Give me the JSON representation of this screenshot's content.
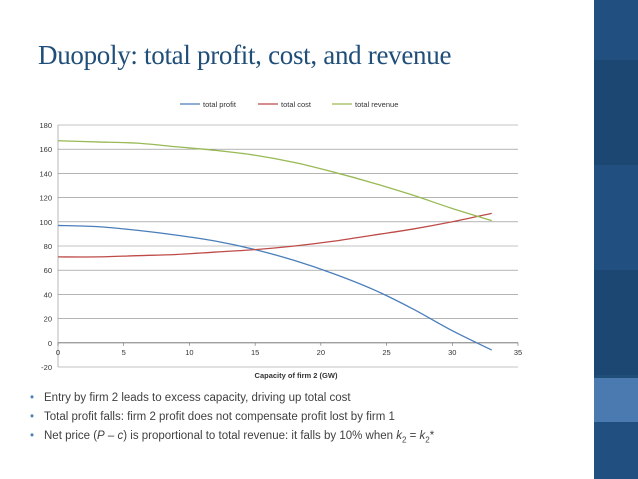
{
  "slide": {
    "title": "Duopoly: total profit, cost, and revenue"
  },
  "bullets": [
    {
      "text": "Entry by firm 2 leads to excess capacity, driving up total cost"
    },
    {
      "text": "Total profit falls: firm 2 profit does not compensate profit lost by firm 1"
    },
    {
      "prefix": "Net price (",
      "p": "P",
      "dash": " – ",
      "c": "c",
      "middle": ") is proportional to total revenue: it falls by 10% when ",
      "k1": "k",
      "sub1": "2",
      "eq": " = ",
      "k2": "k",
      "sub2": "2",
      "star": "*"
    }
  ],
  "colors": {
    "profit": "#4a7ebb",
    "cost": "#be4b48",
    "revenue": "#98b954",
    "grid": "#888888",
    "title": "#1f4e79",
    "bullet": "#4f81bd"
  },
  "chart_data": {
    "type": "line",
    "xlabel": "Capacity of firm 2 (GW)",
    "ylabel": "",
    "xlim": [
      0,
      35
    ],
    "ylim": [
      -20,
      180
    ],
    "x_ticks": [
      0,
      5,
      10,
      15,
      20,
      25,
      30,
      35
    ],
    "y_ticks": [
      -20,
      0,
      20,
      40,
      60,
      80,
      100,
      120,
      140,
      160,
      180
    ],
    "grid": "horizontal",
    "legend_position": "top",
    "x": [
      0,
      3,
      6,
      9,
      12,
      15,
      18,
      21,
      24,
      27,
      30,
      33
    ],
    "series": [
      {
        "name": "total profit",
        "color": "#4a7ebb",
        "values": [
          97,
          96,
          93,
          89,
          84,
          77,
          68,
          57,
          44,
          28,
          10,
          -6
        ]
      },
      {
        "name": "total cost",
        "color": "#be4b48",
        "values": [
          71,
          71,
          72,
          73,
          75,
          77,
          80,
          84,
          89,
          94,
          100,
          107
        ]
      },
      {
        "name": "total revenue",
        "color": "#98b954",
        "values": [
          167,
          166,
          165,
          162,
          159,
          155,
          149,
          141,
          132,
          122,
          111,
          101
        ]
      }
    ]
  }
}
